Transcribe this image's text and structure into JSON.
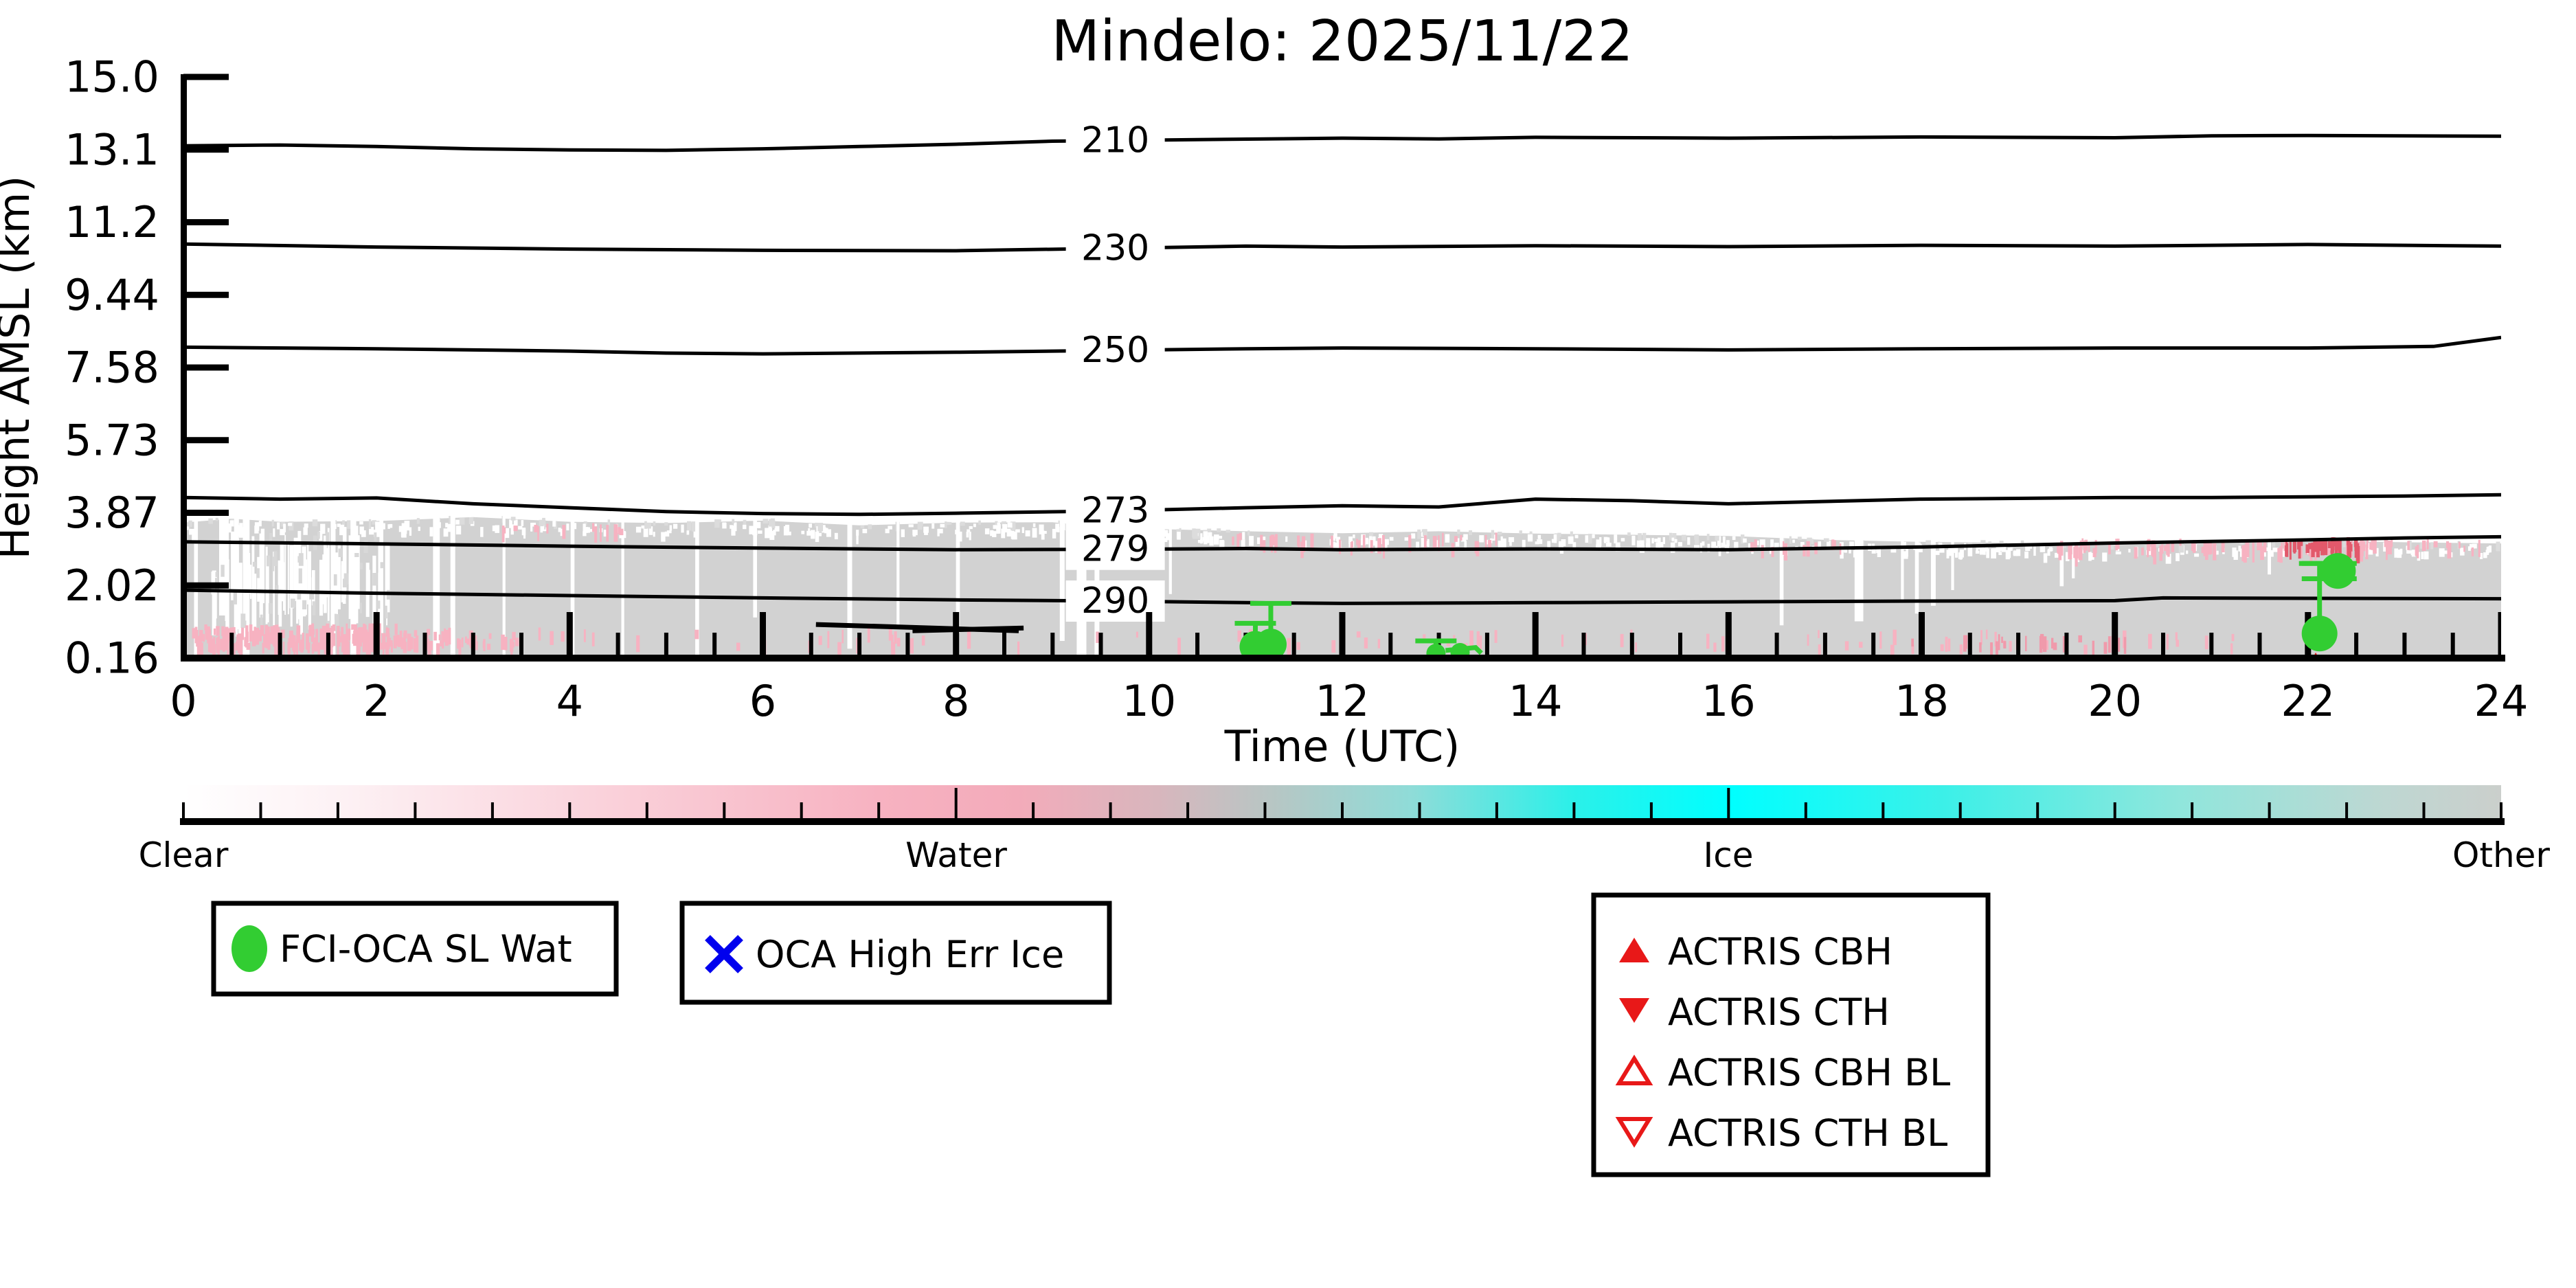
{
  "title": "Mindelo: 2025/11/22",
  "axes": {
    "xlabel": "Time (UTC)",
    "ylabel": "Height AMSL (km)",
    "x_ticks": [
      "0",
      "2",
      "4",
      "6",
      "8",
      "10",
      "12",
      "14",
      "16",
      "18",
      "20",
      "22",
      "24"
    ],
    "y_ticks": [
      "15.0",
      "13.1",
      "11.2",
      "9.44",
      "7.58",
      "5.73",
      "3.87",
      "2.02",
      "0.16"
    ]
  },
  "colorbar": {
    "labels": [
      "Clear",
      "Water",
      "Ice",
      "Other"
    ],
    "stops": [
      [
        0,
        "#ffffff"
      ],
      [
        0.07,
        "#fdf1f4"
      ],
      [
        0.18,
        "#fad2db"
      ],
      [
        0.3,
        "#f7b2c1"
      ],
      [
        0.36,
        "#f3abba"
      ],
      [
        0.42,
        "#d8b6bd"
      ],
      [
        0.47,
        "#b7c6c4"
      ],
      [
        0.53,
        "#8fdcd8"
      ],
      [
        0.6,
        "#2bf0e9"
      ],
      [
        0.667,
        "#00ffff"
      ],
      [
        0.76,
        "#3cf0e8"
      ],
      [
        0.86,
        "#8fe6dc"
      ],
      [
        0.95,
        "#bed7d2"
      ],
      [
        1,
        "#cbcfcc"
      ]
    ]
  },
  "legend1": {
    "label": "FCI-OCA SL Wat",
    "marker": "green-circle"
  },
  "legend2": {
    "label": "OCA High Err Ice",
    "marker": "blue-x"
  },
  "legend3": {
    "items": [
      {
        "label": "ACTRIS CBH",
        "marker": "red-triangle-up-filled"
      },
      {
        "label": "ACTRIS CTH",
        "marker": "red-triangle-down-filled"
      },
      {
        "label": "ACTRIS CBH BL",
        "marker": "red-triangle-up-open"
      },
      {
        "label": "ACTRIS CTH BL",
        "marker": "red-triangle-down-open"
      }
    ]
  },
  "colors": {
    "cloud": "#d2d2d2",
    "fuzz": "#dcdcdc",
    "pink": "#f7b2c1",
    "pink_strong": "#f09aab",
    "red_patch": "#e2596b",
    "green": "#32cd32",
    "blue": "#0000ee",
    "red": "#e81818",
    "black": "#000000"
  },
  "chart_data": {
    "type": "heatmap",
    "title": "Mindelo: 2025/11/22",
    "xlabel": "Time (UTC)",
    "ylabel": "Height AMSL (km)",
    "xlim": [
      0,
      24
    ],
    "x_tick_values": [
      0,
      2,
      4,
      6,
      8,
      10,
      12,
      14,
      16,
      18,
      20,
      22,
      24
    ],
    "x_minor_tick_step": 0.5,
    "y_tick_values": [
      15.0,
      13.1,
      11.2,
      9.44,
      7.58,
      5.73,
      3.87,
      2.02,
      0.16
    ],
    "colorbar_categories": [
      "Clear",
      "Water",
      "Ice",
      "Other"
    ],
    "temperature_contours_K": [
      {
        "level": 210,
        "label_t": 9.65,
        "heights_km": [
          [
            0,
            13.2
          ],
          [
            1,
            13.22
          ],
          [
            2,
            13.18
          ],
          [
            3,
            13.12
          ],
          [
            4,
            13.09
          ],
          [
            5,
            13.08
          ],
          [
            6,
            13.12
          ],
          [
            7,
            13.18
          ],
          [
            8,
            13.24
          ],
          [
            9,
            13.32
          ],
          [
            10.5,
            13.36
          ],
          [
            12,
            13.4
          ],
          [
            13,
            13.38
          ],
          [
            14,
            13.42
          ],
          [
            16,
            13.4
          ],
          [
            18,
            13.43
          ],
          [
            20,
            13.41
          ],
          [
            21,
            13.46
          ],
          [
            22,
            13.47
          ],
          [
            24,
            13.45
          ]
        ]
      },
      {
        "level": 230,
        "label_t": 9.65,
        "heights_km": [
          [
            0,
            10.67
          ],
          [
            2,
            10.6
          ],
          [
            4,
            10.55
          ],
          [
            6,
            10.52
          ],
          [
            8,
            10.51
          ],
          [
            9.65,
            10.57
          ],
          [
            11,
            10.62
          ],
          [
            12,
            10.6
          ],
          [
            14,
            10.63
          ],
          [
            16,
            10.61
          ],
          [
            18,
            10.64
          ],
          [
            20,
            10.62
          ],
          [
            22,
            10.66
          ],
          [
            24,
            10.62
          ]
        ]
      },
      {
        "level": 250,
        "label_t": 9.65,
        "heights_km": [
          [
            0,
            8.1
          ],
          [
            2,
            8.06
          ],
          [
            4,
            8.0
          ],
          [
            5,
            7.95
          ],
          [
            6,
            7.93
          ],
          [
            8,
            7.97
          ],
          [
            9.65,
            8.02
          ],
          [
            11,
            8.06
          ],
          [
            12,
            8.08
          ],
          [
            14,
            8.06
          ],
          [
            16,
            8.03
          ],
          [
            18,
            8.06
          ],
          [
            20,
            8.08
          ],
          [
            22,
            8.08
          ],
          [
            23.3,
            8.12
          ],
          [
            24,
            8.35
          ]
        ]
      },
      {
        "level": 273,
        "label_t": 9.65,
        "heights_km": [
          [
            0,
            4.26
          ],
          [
            1,
            4.22
          ],
          [
            2,
            4.25
          ],
          [
            3,
            4.1
          ],
          [
            4,
            4.0
          ],
          [
            5,
            3.9
          ],
          [
            6,
            3.85
          ],
          [
            7,
            3.83
          ],
          [
            8,
            3.86
          ],
          [
            9.65,
            3.92
          ],
          [
            11,
            4.0
          ],
          [
            12,
            4.05
          ],
          [
            13,
            4.02
          ],
          [
            14,
            4.22
          ],
          [
            15,
            4.18
          ],
          [
            16,
            4.1
          ],
          [
            17,
            4.16
          ],
          [
            18,
            4.22
          ],
          [
            19,
            4.24
          ],
          [
            20,
            4.26
          ],
          [
            21,
            4.26
          ],
          [
            22,
            4.28
          ],
          [
            23,
            4.3
          ],
          [
            24,
            4.33
          ]
        ]
      },
      {
        "level": 279,
        "label_t": 9.65,
        "heights_km": [
          [
            0,
            3.13
          ],
          [
            2,
            3.08
          ],
          [
            4,
            3.02
          ],
          [
            6,
            2.97
          ],
          [
            8,
            2.93
          ],
          [
            9.65,
            2.94
          ],
          [
            11,
            2.96
          ],
          [
            12,
            2.93
          ],
          [
            14,
            2.95
          ],
          [
            16,
            2.93
          ],
          [
            18,
            3.0
          ],
          [
            20,
            3.1
          ],
          [
            22,
            3.18
          ],
          [
            23,
            3.23
          ],
          [
            24,
            3.26
          ]
        ]
      },
      {
        "level": 290,
        "label_t": 9.65,
        "heights_km": [
          [
            0,
            1.9
          ],
          [
            1,
            1.86
          ],
          [
            2,
            1.82
          ],
          [
            4,
            1.76
          ],
          [
            6,
            1.7
          ],
          [
            8,
            1.65
          ],
          [
            9.65,
            1.62
          ],
          [
            11,
            1.58
          ],
          [
            12,
            1.56
          ],
          [
            14,
            1.58
          ],
          [
            16,
            1.6
          ],
          [
            18,
            1.62
          ],
          [
            20,
            1.63
          ],
          [
            20.5,
            1.7
          ],
          [
            22,
            1.69
          ],
          [
            24,
            1.68
          ]
        ]
      }
    ],
    "cloud_band": {
      "base_km": 0.16,
      "top_km": [
        [
          0,
          3.62
        ],
        [
          0.5,
          3.72
        ],
        [
          1,
          3.64
        ],
        [
          2,
          3.66
        ],
        [
          3,
          3.76
        ],
        [
          4,
          3.64
        ],
        [
          5,
          3.61
        ],
        [
          6,
          3.67
        ],
        [
          7,
          3.55
        ],
        [
          8,
          3.62
        ],
        [
          9,
          3.63
        ],
        [
          9.5,
          3.5
        ],
        [
          10,
          3.46
        ],
        [
          11,
          3.4
        ],
        [
          12,
          3.35
        ],
        [
          13,
          3.4
        ],
        [
          14,
          3.34
        ],
        [
          15,
          3.31
        ],
        [
          16,
          3.28
        ],
        [
          17,
          3.18
        ],
        [
          18,
          3.13
        ],
        [
          19,
          3.1
        ],
        [
          20,
          3.05
        ],
        [
          21,
          3.09
        ],
        [
          22,
          3.16
        ],
        [
          23,
          3.12
        ],
        [
          24,
          3.09
        ]
      ]
    },
    "clear_gaps": [
      {
        "t": 0.13,
        "w": 0.04
      },
      {
        "t": 0.42,
        "w": 0.1,
        "bot": 1.25
      },
      {
        "t": 0.55,
        "w": 0.05,
        "bot": 0.9
      },
      {
        "t": 0.65,
        "w": 0.07
      },
      {
        "t": 1.55,
        "w": 0.05
      },
      {
        "t": 1.76,
        "w": 0.06
      },
      {
        "t": 2.05,
        "w": 0.04,
        "bot": 0.8
      },
      {
        "t": 2.62,
        "w": 0.07
      },
      {
        "t": 2.79,
        "w": 0.05
      },
      {
        "t": 3.32,
        "w": 0.03
      },
      {
        "t": 4.03,
        "w": 0.04
      },
      {
        "t": 4.55,
        "w": 0.03
      },
      {
        "t": 5.32,
        "w": 0.04
      },
      {
        "t": 5.92,
        "w": 0.04,
        "bot": 1.2
      },
      {
        "t": 6.9,
        "w": 0.05,
        "bot": 0.4
      },
      {
        "t": 7.4,
        "w": 0.03,
        "bot": 0.9
      },
      {
        "t": 8.02,
        "w": 0.04,
        "bot": 0.8
      },
      {
        "t": 9.1,
        "w": 0.05,
        "bot": 0.6
      },
      {
        "t": 9.3,
        "w": 0.1
      },
      {
        "t": 9.46,
        "w": 0.05
      },
      {
        "t": 10.22,
        "w": 0.03,
        "bot": 1.8
      },
      {
        "t": 16.55,
        "w": 0.04,
        "bot": 1.0
      },
      {
        "t": 17.35,
        "w": 0.09,
        "bot": 1.1
      },
      {
        "t": 17.8,
        "w": 0.03,
        "bot": 1.6
      },
      {
        "t": 17.95,
        "w": 0.04,
        "bot": 1.3
      },
      {
        "t": 18.12,
        "w": 0.05,
        "bot": 1.5
      },
      {
        "t": 18.32,
        "w": 0.03,
        "bot": 1.9
      },
      {
        "t": 19.45,
        "w": 0.04,
        "bot": 2.0
      },
      {
        "t": 19.57,
        "w": 0.03,
        "bot": 2.2
      },
      {
        "t": 21.6,
        "w": 0.035,
        "bot": 2.3
      }
    ],
    "detected_layer_lines": [
      [
        [
          6.55,
          1.02
        ],
        [
          7.5,
          0.95
        ],
        [
          8.65,
          0.86
        ]
      ],
      [
        [
          7.55,
          0.86
        ],
        [
          8.7,
          0.93
        ]
      ]
    ],
    "fci_oca_sl_wat_points": [
      {
        "t": 11.1,
        "h_km": 0.45,
        "err_top_km": 1.05
      },
      {
        "t": 11.26,
        "h_km": 0.51,
        "err_top_km": 1.56
      },
      {
        "t": 12.97,
        "h_km": 0.28,
        "err_top_km": 0.6
      },
      {
        "t": 13.22,
        "h_km": 0.3
      },
      {
        "t": 22.12,
        "h_km": 0.79,
        "err_top_km": 2.58
      },
      {
        "t": 22.31,
        "h_km": 2.39,
        "err_low_km": 2.19,
        "err_top_km": 2.58
      }
    ],
    "fci_squiggle": [
      [
        13.07,
        0.355
      ],
      [
        13.38,
        0.43
      ],
      [
        13.44,
        0.285
      ]
    ],
    "actris_points": [
      {
        "type": "CBH",
        "t": 22.08,
        "h_km": 0.3
      }
    ],
    "oca_high_err_ice_points": []
  },
  "texture": {
    "streak_zone": {
      "t0": 0.3,
      "t1": 2.15,
      "n": 75
    },
    "fuzz": {
      "n": 650
    },
    "pink_groups": [
      {
        "t0": 0.08,
        "t1": 2.2,
        "k0": 0.5,
        "k1": 1.05,
        "n": 230,
        "c": "pink"
      },
      {
        "t0": 2.2,
        "t1": 3.45,
        "k0": 0.52,
        "k1": 0.95,
        "n": 55,
        "c": "pink"
      },
      {
        "t0": 3.5,
        "t1": 9.5,
        "k0": 0.55,
        "k1": 0.95,
        "n": 26,
        "c": "pink"
      },
      {
        "t0": 9.5,
        "t1": 16.2,
        "k0": 0.5,
        "k1": 0.9,
        "n": 28,
        "c": "pink"
      },
      {
        "t0": 16.2,
        "t1": 21.3,
        "k0": 0.5,
        "k1": 0.9,
        "n": 30,
        "c": "pink"
      },
      {
        "t0": 17.5,
        "t1": 20.3,
        "k0": 0.55,
        "k1": 0.8,
        "n": 26,
        "c": "pink_strong"
      },
      {
        "t0": 10.6,
        "t1": 13.9,
        "k0": 3.1,
        "k1": 3.38,
        "n": 40,
        "c": "pink"
      },
      {
        "t0": 3.2,
        "t1": 4.6,
        "k0": 3.45,
        "k1": 3.62,
        "n": 14,
        "c": "pink"
      },
      {
        "t0": 16.0,
        "t1": 17.2,
        "k0": 3.0,
        "k1": 3.2,
        "n": 12,
        "c": "pink"
      },
      {
        "t0": 19.3,
        "t1": 23.95,
        "k0": 2.95,
        "k1": 3.22,
        "n": 110,
        "c": "pink"
      },
      {
        "t0": 21.75,
        "t1": 22.5,
        "k0": 3.02,
        "k1": 3.25,
        "n": 45,
        "c": "red_patch"
      }
    ]
  }
}
